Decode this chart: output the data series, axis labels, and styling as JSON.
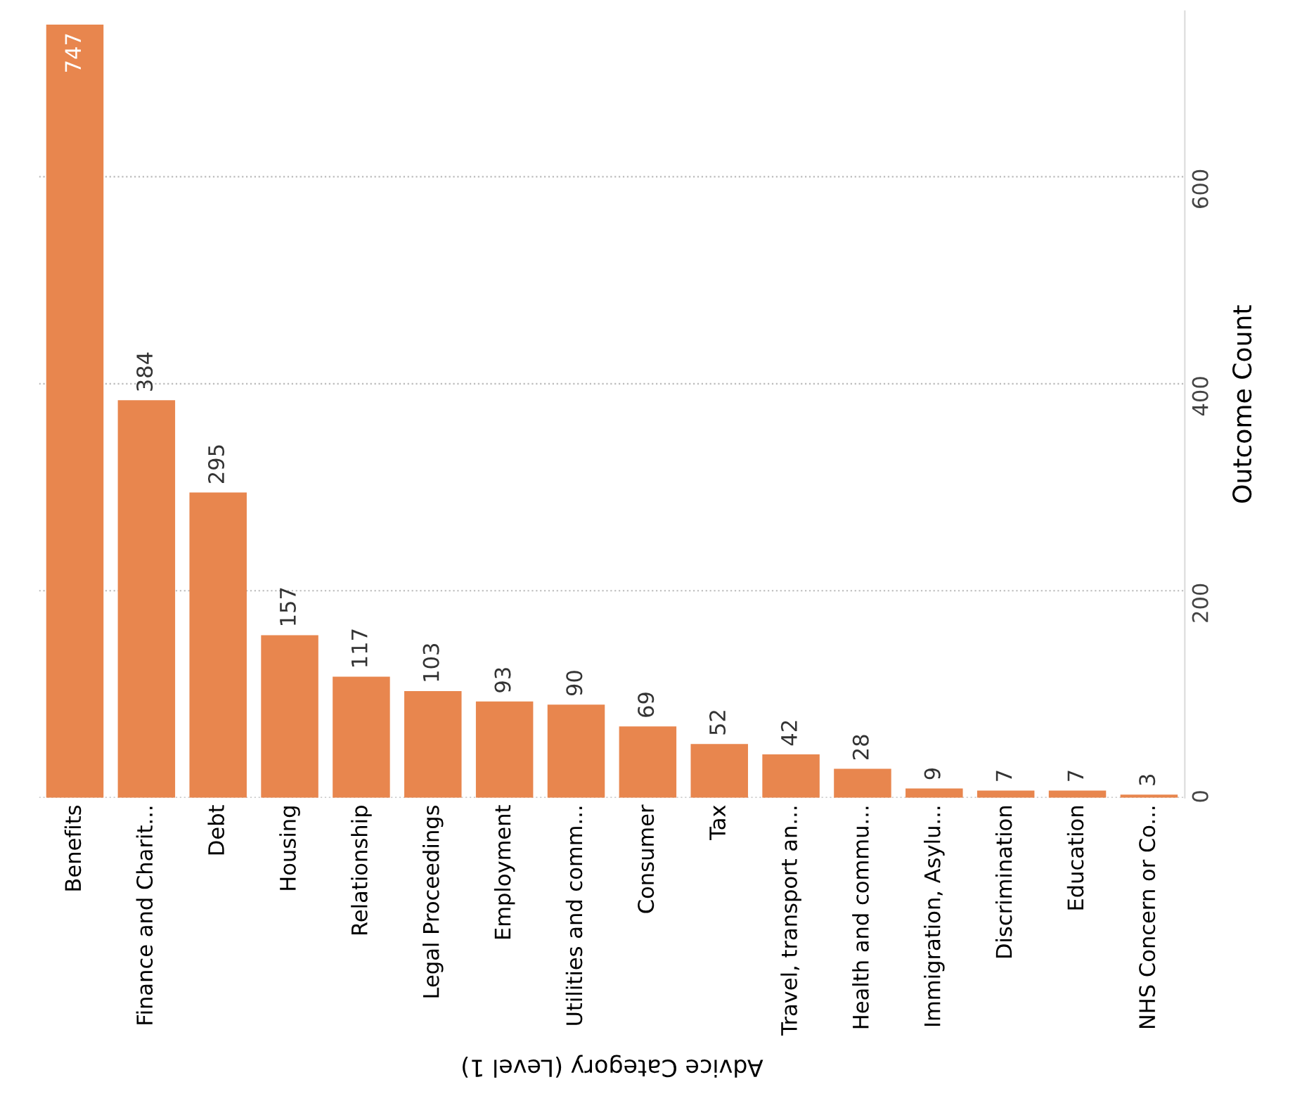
{
  "chart_data": {
    "type": "bar",
    "xlabel": "Advice Category (Level 1)",
    "ylabel": "Outcome Count",
    "categories": [
      "Benefits",
      "Finance and Charit...",
      "Debt",
      "Housing",
      "Relationship",
      "Legal Proceedings",
      "Employment",
      "Utilities and comm...",
      "Consumer",
      "Tax",
      "Travel, transport an...",
      "Health and commu...",
      "Immigration, Asylu...",
      "Discrimination",
      "Education",
      "NHS Concern or Co..."
    ],
    "values": [
      747,
      384,
      295,
      157,
      117,
      103,
      93,
      90,
      69,
      52,
      42,
      28,
      9,
      7,
      7,
      3
    ],
    "color": "#e8864e",
    "ylim": [
      0,
      760
    ],
    "yticks": [
      0,
      200,
      400,
      600
    ],
    "grid": "y",
    "data_labels": true
  }
}
